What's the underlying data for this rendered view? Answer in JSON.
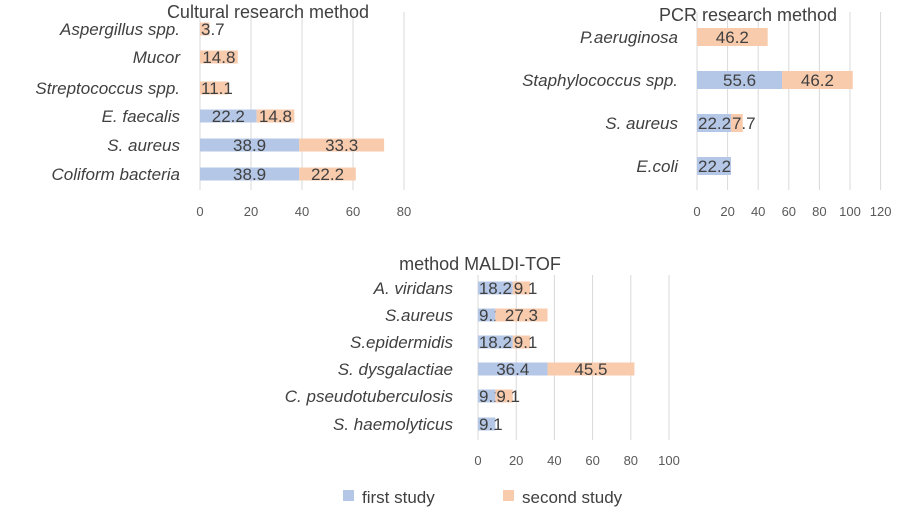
{
  "colors": {
    "first": "#b4c7e7",
    "second": "#f8cbad",
    "grid": "#d9d9d9"
  },
  "legend": {
    "first": "first study",
    "second": "second study"
  },
  "chart_data": [
    {
      "type": "bar",
      "orientation": "horizontal",
      "stacked": true,
      "title": "Cultural research method",
      "categories": [
        "Aspergillus spp.",
        "Mucor",
        "Streptococcus spp.",
        "E. faecalis",
        "S. aureus",
        "Coliform bacteria"
      ],
      "series": [
        {
          "name": "first study",
          "values": [
            null,
            null,
            null,
            22.2,
            38.9,
            38.9
          ]
        },
        {
          "name": "second study",
          "values": [
            3.7,
            14.8,
            11.1,
            14.8,
            33.3,
            22.2
          ]
        }
      ],
      "xlim": [
        0,
        80
      ],
      "xticks": [
        0,
        20,
        40,
        60,
        80
      ],
      "grid": true
    },
    {
      "type": "bar",
      "orientation": "horizontal",
      "stacked": true,
      "title": "PCR research method",
      "categories": [
        "P.aeruginosa",
        "Staphylococcus spp.",
        "S. aureus",
        "E.coli"
      ],
      "series": [
        {
          "name": "first study",
          "values": [
            null,
            55.6,
            22.2,
            22.2
          ]
        },
        {
          "name": "second study",
          "values": [
            46.2,
            46.2,
            7.7,
            null
          ]
        }
      ],
      "xlim": [
        0,
        120
      ],
      "xticks": [
        0,
        20,
        40,
        60,
        80,
        100,
        120
      ],
      "grid": true
    },
    {
      "type": "bar",
      "orientation": "horizontal",
      "stacked": true,
      "title": "method MALDI-TOF",
      "categories": [
        "A. viridans",
        "S.aureus",
        "S.epidermidis",
        "S. dysgalactiae",
        "C. pseudotuberculosis",
        "S. haemolyticus"
      ],
      "series": [
        {
          "name": "first study",
          "values": [
            18.2,
            9.1,
            18.2,
            36.4,
            9.1,
            9.1
          ]
        },
        {
          "name": "second study",
          "values": [
            9.1,
            27.3,
            9.1,
            45.5,
            9.1,
            null
          ]
        }
      ],
      "xlim": [
        0,
        100
      ],
      "xticks": [
        0,
        20,
        40,
        60,
        80,
        100
      ],
      "grid": true,
      "legend": "bottom"
    }
  ]
}
